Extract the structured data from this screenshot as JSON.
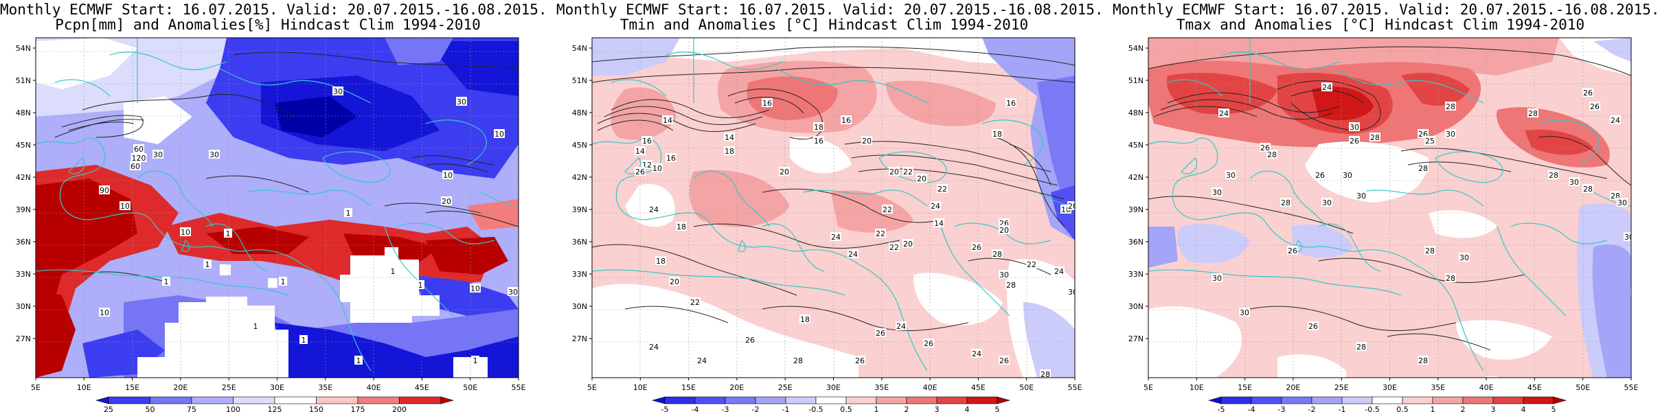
{
  "panels": [
    {
      "id": "precip",
      "title_line1": "Monthly ECMWF Start: 16.07.2015. Valid: 20.07.2015.-16.08.2015.",
      "title_line2": "Pcpn[mm] and Anomalies[%] Hindcast Clim 1994-2010",
      "colorbar": {
        "labels": [
          "25",
          "50",
          "75",
          "100",
          "125",
          "150",
          "175",
          "200"
        ],
        "colors": [
          "#1515d8",
          "#3c3cf0",
          "#7575f6",
          "#aeaefa",
          "#dcdcfc",
          "#ffffff",
          "#fbc6c6",
          "#f37c7c",
          "#de2a2a",
          "#b80000"
        ]
      },
      "contour_labels": [
        "30",
        "30",
        "10",
        "10",
        "30",
        "60",
        "120",
        "60",
        "90",
        "10",
        "30",
        "10",
        "20",
        "1",
        "1",
        "10",
        "1",
        "1",
        "1",
        "10",
        "30",
        "1",
        "1",
        "1",
        "1",
        "1",
        "1",
        "1",
        "10"
      ]
    },
    {
      "id": "tmin",
      "title_line1": "Monthly ECMWF Start: 16.07.2015. Valid: 20.07.2015.-16.08.2015.",
      "title_line2": "Tmin and Anomalies [°C] Hindcast Clim 1994-2010",
      "colorbar": {
        "labels": [
          "-5",
          "-4",
          "-3",
          "-2",
          "-1",
          "-0.5",
          "0.5",
          "1",
          "2",
          "3",
          "4",
          "5"
        ],
        "colors": [
          "#1010d0",
          "#2e2ee8",
          "#5050f4",
          "#7a7af6",
          "#a4a4f8",
          "#ccccfb",
          "#ffffff",
          "#fbd0d0",
          "#f4a4a4",
          "#ee7676",
          "#e24444",
          "#d01616",
          "#b00000"
        ]
      },
      "contour_labels": [
        "16",
        "14",
        "16",
        "18",
        "16",
        "18",
        "20",
        "16",
        "14",
        "12",
        "10",
        "14",
        "16",
        "18",
        "16",
        "20",
        "22",
        "24",
        "22",
        "20",
        "18",
        "26",
        "24",
        "20",
        "18",
        "22",
        "14",
        "22",
        "26",
        "20",
        "24",
        "24",
        "22",
        "20",
        "26",
        "28",
        "30",
        "28",
        "22",
        "24",
        "18",
        "20",
        "22",
        "24",
        "22",
        "26",
        "30",
        "20",
        "22",
        "24",
        "24",
        "26",
        "28",
        "26",
        "18",
        "24",
        "26",
        "26",
        "24",
        "26",
        "28",
        "26",
        "24",
        "22",
        "20",
        "24",
        "14",
        "18",
        "16",
        "20"
      ]
    },
    {
      "id": "tmax",
      "title_line1": "Monthly ECMWF Start: 16.07.2015. Valid: 20.07.2015.-16.08.2015.",
      "title_line2": "Tmax and Anomalies [°C] Hindcast Clim 1994-2010",
      "colorbar": {
        "labels": [
          "-5",
          "-4",
          "-3",
          "-2",
          "-1",
          "-0.5",
          "0.5",
          "1",
          "2",
          "3",
          "4",
          "5"
        ],
        "colors": [
          "#1010d0",
          "#2e2ee8",
          "#5050f4",
          "#7a7af6",
          "#a4a4f8",
          "#ccccfb",
          "#ffffff",
          "#fbd0d0",
          "#f4a4a4",
          "#ee7676",
          "#e24444",
          "#d01616",
          "#b00000"
        ]
      },
      "contour_labels": [
        "24",
        "24",
        "26",
        "26",
        "24",
        "28",
        "30",
        "28",
        "30",
        "26",
        "26",
        "28",
        "25",
        "28",
        "26",
        "30",
        "30",
        "28",
        "30",
        "28",
        "26",
        "30",
        "30",
        "28",
        "30",
        "28",
        "26",
        "28",
        "30",
        "28",
        "28",
        "30",
        "28",
        "30",
        "28",
        "30",
        "30",
        "26",
        "28",
        "28",
        "28"
      ]
    }
  ],
  "axes": {
    "lat_labels": [
      "54N",
      "51N",
      "48N",
      "45N",
      "42N",
      "39N",
      "36N",
      "33N",
      "30N",
      "27N"
    ],
    "lon_labels": [
      "5E",
      "10E",
      "15E",
      "20E",
      "25E",
      "30E",
      "35E",
      "40E",
      "45E",
      "50E",
      "55E"
    ]
  },
  "colors": {
    "coast": "#33c8c8",
    "contour": "#222222",
    "frame": "#000000"
  }
}
